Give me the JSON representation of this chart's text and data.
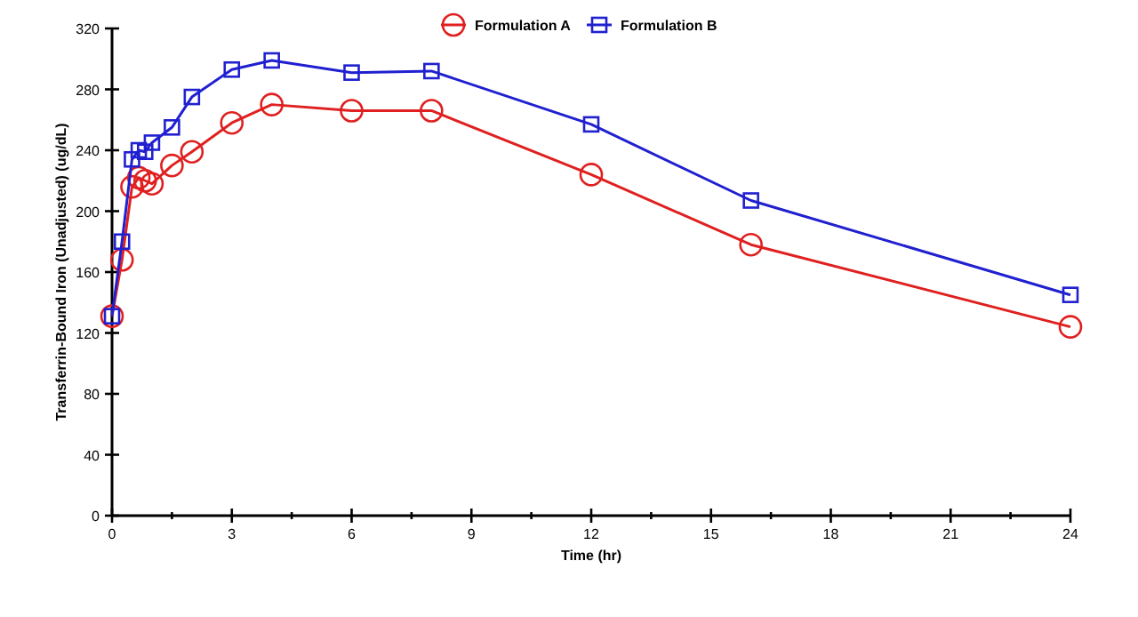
{
  "chart_data": {
    "type": "line",
    "xlabel": "Time (hr)",
    "ylabel": "Transferrin-Bound Iron (Unadjusted) (ug/dL)",
    "x": [
      0,
      0.25,
      0.5,
      0.67,
      0.83,
      1,
      1.5,
      2,
      3,
      4,
      6,
      8,
      12,
      16,
      24
    ],
    "series": [
      {
        "name": "Formulation A",
        "color": "#e02020",
        "marker": "circle",
        "values": [
          131,
          168,
          216,
          222,
          220,
          218,
          230,
          239,
          258,
          270,
          266,
          266,
          224,
          178,
          124
        ]
      },
      {
        "name": "Formulation B",
        "color": "#2020d0",
        "marker": "square",
        "values": [
          131,
          180,
          234,
          240,
          239,
          245,
          255,
          275,
          293,
          299,
          291,
          292,
          257,
          207,
          145
        ]
      }
    ],
    "xlim": [
      0,
      24
    ],
    "xticks": [
      0,
      {
        "value": 1.5,
        "label": null
      },
      3,
      {
        "value": 4.5,
        "label": null
      },
      6,
      {
        "value": 7.5,
        "label": null
      },
      9,
      {
        "value": 10.5,
        "label": null
      },
      12,
      {
        "value": 13.5,
        "label": null
      },
      15,
      {
        "value": 16.5,
        "label": null
      },
      18,
      {
        "value": 19.5,
        "label": null
      },
      21,
      {
        "value": 22.5,
        "label": null
      },
      24
    ],
    "ylim": [
      0,
      320
    ],
    "yticks": [
      0,
      40,
      80,
      120,
      160,
      200,
      240,
      280,
      320
    ],
    "grid": false,
    "legend": "top"
  }
}
